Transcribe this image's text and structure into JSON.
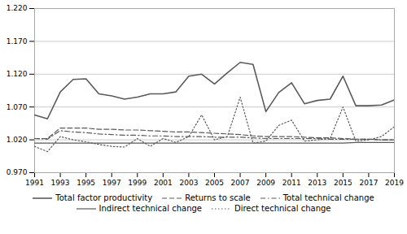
{
  "chart_data": {
    "type": "line",
    "x": [
      1991,
      1992,
      1993,
      1994,
      1995,
      1996,
      1997,
      1998,
      1999,
      2000,
      2001,
      2002,
      2003,
      2004,
      2005,
      2006,
      2007,
      2008,
      2009,
      2010,
      2011,
      2012,
      2013,
      2014,
      2015,
      2016,
      2017,
      2018,
      2019
    ],
    "series": [
      {
        "name": "Total factor productivity",
        "color": "#5a5a5a",
        "line_style": "solid",
        "values": [
          1.058,
          1.052,
          1.093,
          1.112,
          1.113,
          1.09,
          1.087,
          1.082,
          1.085,
          1.09,
          1.09,
          1.093,
          1.117,
          1.12,
          1.105,
          1.122,
          1.138,
          1.135,
          1.063,
          1.092,
          1.107,
          1.075,
          1.08,
          1.082,
          1.117,
          1.072,
          1.072,
          1.073,
          1.081
        ]
      },
      {
        "name": "Returns to scale",
        "color": "#5a5a5a",
        "line_style": "dashed",
        "values": [
          1.022,
          1.022,
          1.038,
          1.038,
          1.038,
          1.036,
          1.036,
          1.035,
          1.035,
          1.034,
          1.033,
          1.032,
          1.032,
          1.031,
          1.03,
          1.029,
          1.028,
          1.026,
          1.025,
          1.025,
          1.025,
          1.024,
          1.023,
          1.023,
          1.022,
          1.021,
          1.021,
          1.02,
          1.02
        ]
      },
      {
        "name": "Total technical change",
        "color": "#5a5a5a",
        "line_style": "dashdot",
        "values": [
          1.022,
          1.021,
          1.034,
          1.032,
          1.031,
          1.029,
          1.028,
          1.027,
          1.027,
          1.026,
          1.026,
          1.025,
          1.025,
          1.025,
          1.024,
          1.024,
          1.024,
          1.023,
          1.022,
          1.022,
          1.022,
          1.022,
          1.022,
          1.021,
          1.021,
          1.021,
          1.021,
          1.02,
          1.02
        ]
      },
      {
        "name": "Indirect technical change",
        "color": "#5a5a5a",
        "line_style": "solid",
        "values": [
          1.015,
          1.015,
          1.015,
          1.015,
          1.015,
          1.015,
          1.015,
          1.015,
          1.015,
          1.015,
          1.015,
          1.015,
          1.015,
          1.015,
          1.015,
          1.015,
          1.015,
          1.015,
          1.015,
          1.015,
          1.015,
          1.015,
          1.015,
          1.015,
          1.015,
          1.016,
          1.016,
          1.016,
          1.016
        ]
      },
      {
        "name": "Direct technical change",
        "color": "#5a5a5a",
        "line_style": "dotted",
        "values": [
          1.01,
          1.002,
          1.025,
          1.02,
          1.017,
          1.013,
          1.01,
          1.009,
          1.022,
          1.01,
          1.022,
          1.016,
          1.025,
          1.058,
          1.02,
          1.025,
          1.085,
          1.015,
          1.018,
          1.042,
          1.05,
          1.018,
          1.02,
          1.022,
          1.07,
          1.018,
          1.02,
          1.025,
          1.04
        ]
      }
    ],
    "xlim": [
      1991,
      2019
    ],
    "xticks": [
      1991,
      1993,
      1995,
      1997,
      1999,
      2001,
      2003,
      2005,
      2007,
      2009,
      2011,
      2013,
      2015,
      2017,
      2019
    ],
    "ylim": [
      0.97,
      1.22
    ],
    "yticks": [
      {
        "value": 0.97,
        "label": "0.970"
      },
      {
        "value": 1.02,
        "label": "1.020"
      },
      {
        "value": 1.07,
        "label": "1.070"
      },
      {
        "value": 1.12,
        "label": "1.120"
      },
      {
        "value": 1.17,
        "label": "1.170"
      },
      {
        "value": 1.22,
        "label": "1.220"
      }
    ],
    "grid": true,
    "legend": "bottom"
  }
}
